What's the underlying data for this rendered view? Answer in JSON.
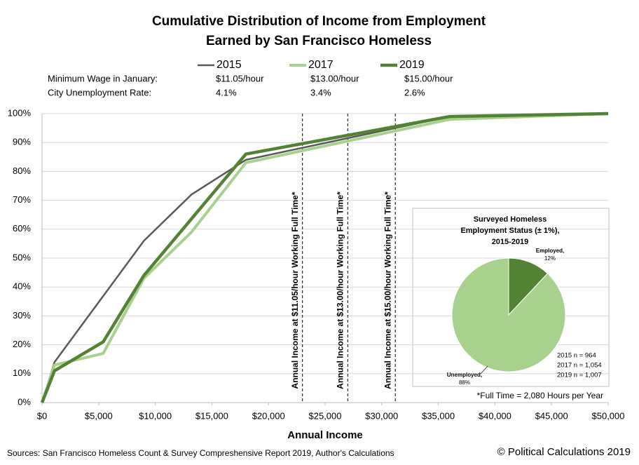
{
  "chart_data": [
    {
      "type": "line",
      "title": "Cumulative Distribution of Income from Employment",
      "subtitle": "Earned by San Francisco Homeless",
      "x_label": "Annual Income",
      "info_rows": [
        {
          "label": "Minimum  Wage in January:",
          "cells": [
            "$11.05/hour",
            "$13.00/hour",
            "$15.00/hour"
          ]
        },
        {
          "label": "City Unemployment  Rate:",
          "cells": [
            "4.1%",
            "3.4%",
            "2.6%"
          ]
        }
      ],
      "series": [
        {
          "name": "2015",
          "color": "#595959",
          "x": [
            0,
            1100,
            9000,
            13200,
            18000,
            36000,
            50000
          ],
          "values": [
            0,
            14,
            56,
            72,
            84,
            99,
            100
          ]
        },
        {
          "name": "2017",
          "color": "#a9d18e",
          "x": [
            0,
            1100,
            5400,
            9000,
            13200,
            18000,
            36000,
            50000
          ],
          "values": [
            0,
            13,
            17,
            43,
            59,
            83,
            98,
            100
          ]
        },
        {
          "name": "2019",
          "color": "#548235",
          "x": [
            0,
            1100,
            5400,
            9000,
            18000,
            36000,
            50000
          ],
          "values": [
            0,
            11,
            21,
            44,
            86,
            99,
            100
          ]
        }
      ],
      "reference_lines": [
        {
          "x": 23000,
          "label": "Annual Income at $11.05/hour Working Full Time*"
        },
        {
          "x": 27000,
          "label": "Annual Income at $13.00/hour Working Full Time*"
        },
        {
          "x": 31200,
          "label": "Annual Income at $15.00/hour Working Full Time*"
        }
      ],
      "xlim": [
        0,
        50000
      ],
      "xticks": [
        {
          "value": 0,
          "label": "$0"
        },
        {
          "value": 5000,
          "label": "$5,000"
        },
        {
          "value": 10000,
          "label": "$10,000"
        },
        {
          "value": 15000,
          "label": "$15,000"
        },
        {
          "value": 20000,
          "label": "$20,000"
        },
        {
          "value": 25000,
          "label": "$25,000"
        },
        {
          "value": 30000,
          "label": "$30,000"
        },
        {
          "value": 35000,
          "label": "$35,000"
        },
        {
          "value": 40000,
          "label": "$40,000"
        },
        {
          "value": 45000,
          "label": "$45,000"
        },
        {
          "value": 50000,
          "label": "$50,000"
        }
      ],
      "ylim": [
        0,
        100
      ],
      "yticks": [
        {
          "value": 0,
          "label": "0%"
        },
        {
          "value": 10,
          "label": "10%"
        },
        {
          "value": 20,
          "label": "20%"
        },
        {
          "value": 30,
          "label": "30%"
        },
        {
          "value": 40,
          "label": "40%"
        },
        {
          "value": 50,
          "label": "50%"
        },
        {
          "value": 60,
          "label": "60%"
        },
        {
          "value": 70,
          "label": "70%"
        },
        {
          "value": 80,
          "label": "80%"
        },
        {
          "value": 90,
          "label": "90%"
        },
        {
          "value": 100,
          "label": "100%"
        }
      ],
      "grid": true,
      "footnote": "*Full Time = 2,080 Hours per Year",
      "source": "Sources: San Francisco Homeless Count & Survey Compreshensive Report 2019, Author's Calculations",
      "credit": "© Political Calculations 2019"
    },
    {
      "type": "pie",
      "title": [
        "Surveyed Homeless",
        "Employment Status (± 1%),",
        "2015-2019"
      ],
      "categories": [
        "Employed,",
        "Unemployed,"
      ],
      "values": [
        12,
        88
      ],
      "value_labels": [
        "12%",
        "88%"
      ],
      "colors": [
        "#548235",
        "#a9d18e"
      ],
      "notes": [
        "2015 n =    964",
        "2017 n = 1,054",
        "2019 n = 1,007"
      ]
    }
  ]
}
